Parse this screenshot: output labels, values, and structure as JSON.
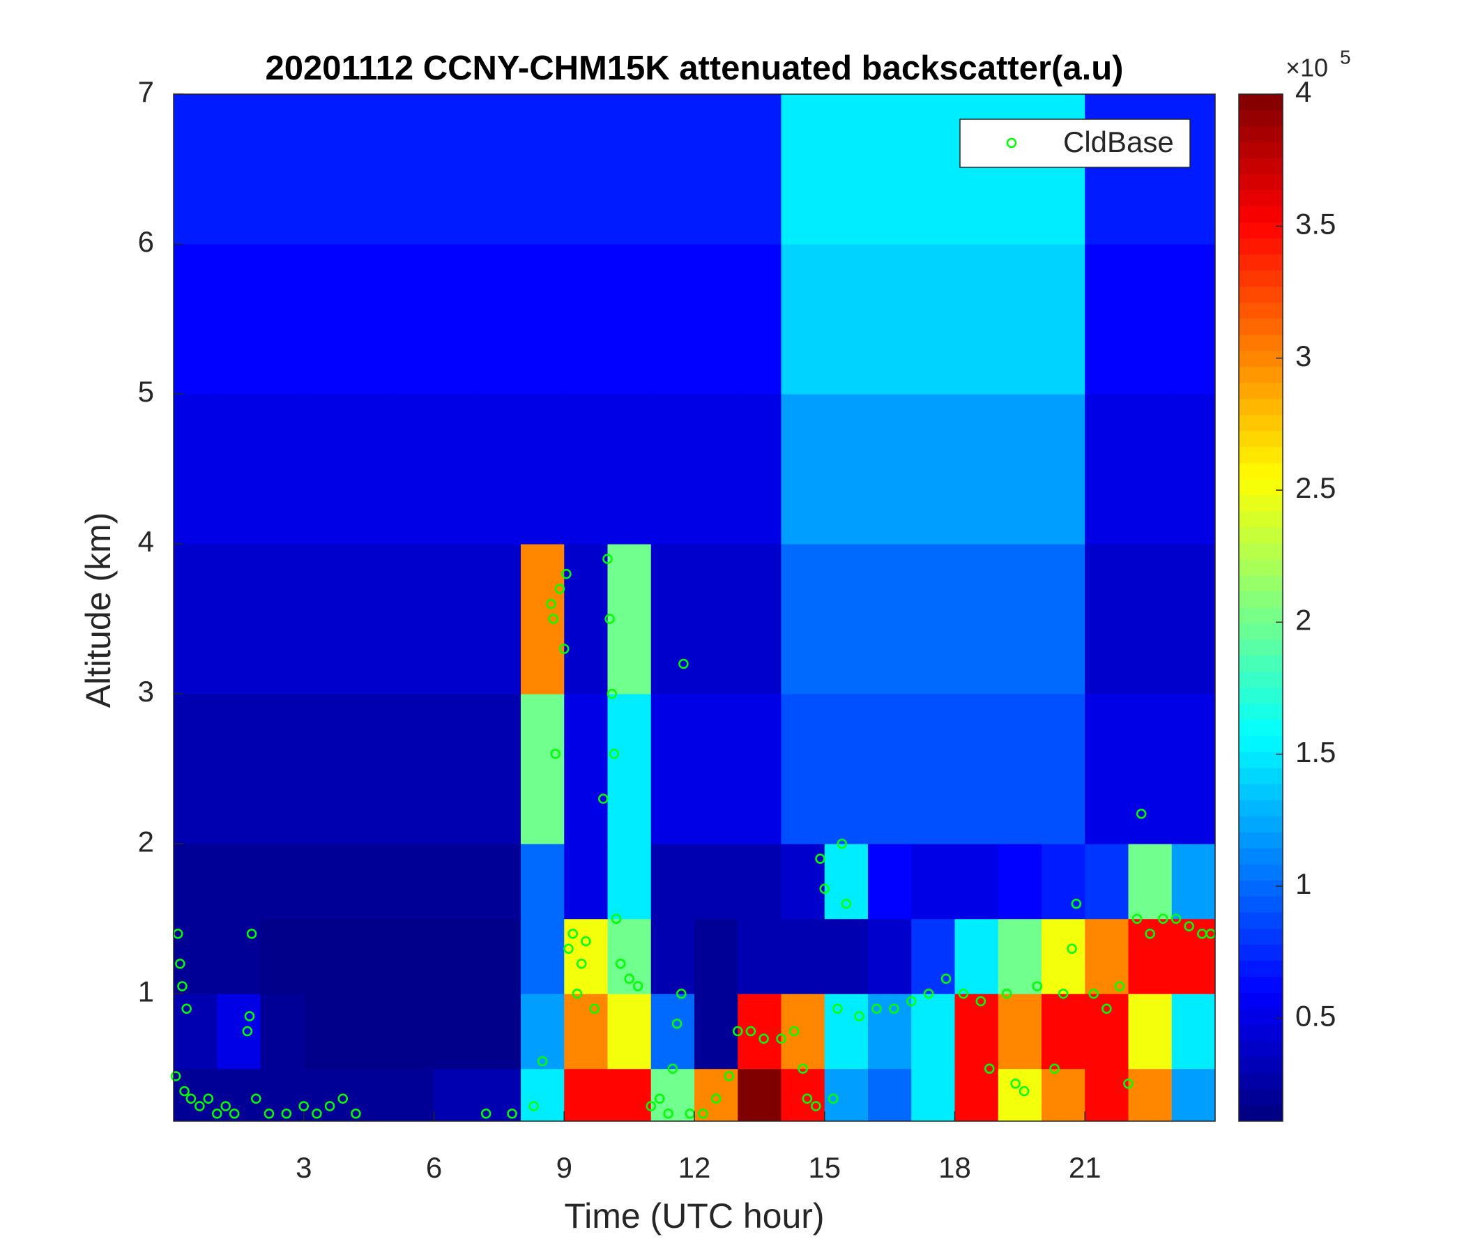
{
  "chart_data": {
    "type": "heatmap",
    "title": "20201112 CCNY-CHM15K attenuated backscatter(a.u)",
    "xlabel": "Time (UTC hour)",
    "ylabel": "Altitude (km)",
    "xlim": [
      0,
      24
    ],
    "ylim": [
      0.15,
      7
    ],
    "xticks": [
      3,
      6,
      9,
      12,
      15,
      18,
      21
    ],
    "yticks": [
      1,
      2,
      3,
      4,
      5,
      6,
      7
    ],
    "colormap": "jet",
    "clim": [
      0.11,
      4
    ],
    "cticks": [
      0.5,
      1,
      1.5,
      2,
      2.5,
      3,
      3.5,
      4
    ],
    "colorbar_multiplier": "×10",
    "colorbar_exponent": "5",
    "legend_position": "upper right",
    "x_edges": [
      0,
      1,
      2,
      3,
      4,
      5,
      6,
      7,
      8,
      9,
      10,
      11,
      12,
      13,
      14,
      15,
      16,
      17,
      18,
      19,
      20,
      21,
      22,
      23,
      24
    ],
    "y_edges": [
      0.15,
      0.5,
      1,
      1.5,
      2,
      3,
      4,
      5,
      6,
      7
    ],
    "z": [
      [
        0.2,
        0.2,
        0.2,
        0.2,
        0.2,
        0.2,
        0.3,
        0.3,
        1.5,
        3.5,
        3.5,
        2,
        3,
        4,
        3.5,
        1.2,
        1,
        1.5,
        3.5,
        2.5,
        3,
        3.5,
        3,
        1.2
      ],
      [
        0.3,
        0.5,
        0.2,
        0.15,
        0.15,
        0.15,
        0.15,
        0.15,
        1.2,
        3,
        2.5,
        1,
        0.2,
        3.5,
        3,
        1.5,
        1.2,
        1.5,
        3.5,
        3,
        3.5,
        3.5,
        2.5,
        1.5
      ],
      [
        0.2,
        0.2,
        0.15,
        0.15,
        0.15,
        0.15,
        0.15,
        0.15,
        1,
        2.5,
        2,
        0.3,
        0.2,
        0.3,
        0.3,
        0.3,
        0.4,
        0.8,
        1.5,
        2,
        2.5,
        3,
        3.5,
        3.5
      ],
      [
        0.2,
        0.2,
        0.2,
        0.2,
        0.2,
        0.2,
        0.2,
        0.2,
        1,
        0.5,
        1.5,
        0.3,
        0.3,
        0.3,
        0.4,
        1.5,
        0.6,
        0.5,
        0.5,
        0.6,
        0.7,
        0.8,
        2,
        1.2
      ],
      [
        0.3,
        0.3,
        0.3,
        0.3,
        0.3,
        0.3,
        0.3,
        0.3,
        2,
        0.5,
        1.5,
        0.5,
        0.5,
        0.5,
        0.9,
        0.9,
        0.9,
        0.9,
        0.9,
        0.9,
        0.9,
        0.5,
        0.5,
        0.5
      ],
      [
        0.4,
        0.4,
        0.4,
        0.4,
        0.4,
        0.4,
        0.4,
        0.4,
        3,
        0.4,
        2,
        0.4,
        0.4,
        0.4,
        1,
        1,
        1,
        1,
        1,
        1,
        1,
        0.4,
        0.4,
        0.4
      ],
      [
        0.5,
        0.5,
        0.5,
        0.5,
        0.5,
        0.5,
        0.5,
        0.5,
        0.5,
        0.5,
        0.5,
        0.5,
        0.5,
        0.5,
        1.2,
        1.2,
        1.2,
        1.2,
        1.2,
        1.2,
        1.2,
        0.5,
        0.5,
        0.5
      ],
      [
        0.6,
        0.6,
        0.6,
        0.6,
        0.6,
        0.6,
        0.6,
        0.6,
        0.6,
        0.6,
        0.6,
        0.6,
        0.6,
        0.6,
        1.4,
        1.4,
        1.4,
        1.4,
        1.4,
        1.4,
        1.4,
        0.6,
        0.6,
        0.6
      ],
      [
        0.7,
        0.7,
        0.7,
        0.7,
        0.7,
        0.7,
        0.7,
        0.7,
        0.7,
        0.7,
        0.7,
        0.7,
        0.7,
        0.7,
        1.5,
        1.5,
        1.5,
        1.5,
        1.5,
        1.5,
        1.5,
        0.7,
        0.7,
        0.7
      ]
    ],
    "series": [
      {
        "name": "CldBase",
        "type": "scatter",
        "color": "#00ff00",
        "x": [
          0.05,
          0.1,
          0.15,
          0.2,
          0.25,
          0.3,
          0.4,
          0.6,
          0.8,
          1.0,
          1.2,
          1.4,
          1.7,
          1.75,
          1.8,
          1.9,
          2.2,
          2.6,
          3.0,
          3.3,
          3.6,
          3.9,
          4.2,
          7.2,
          7.8,
          8.3,
          8.5,
          8.7,
          8.75,
          8.8,
          8.9,
          9.0,
          9.05,
          9.1,
          9.2,
          9.3,
          9.4,
          9.5,
          9.7,
          9.9,
          10.0,
          10.05,
          10.1,
          10.15,
          10.2,
          10.3,
          10.5,
          10.7,
          11.0,
          11.2,
          11.4,
          11.5,
          11.6,
          11.7,
          11.75,
          11.9,
          12.2,
          12.5,
          12.8,
          13.0,
          13.3,
          13.6,
          14.0,
          14.3,
          14.5,
          14.6,
          14.8,
          14.9,
          15.0,
          15.2,
          15.3,
          15.4,
          15.5,
          15.8,
          16.2,
          16.6,
          17.0,
          17.4,
          17.8,
          18.2,
          18.6,
          18.8,
          19.2,
          19.4,
          19.6,
          19.9,
          20.3,
          20.5,
          20.7,
          20.8,
          21.2,
          21.5,
          21.8,
          22.0,
          22.2,
          22.3,
          22.5,
          22.8,
          23.1,
          23.4,
          23.7,
          23.9
        ],
        "y": [
          0.45,
          1.4,
          1.2,
          1.05,
          0.35,
          0.9,
          0.3,
          0.25,
          0.3,
          0.2,
          0.25,
          0.2,
          0.75,
          0.85,
          1.4,
          0.3,
          0.2,
          0.2,
          0.25,
          0.2,
          0.25,
          0.3,
          0.2,
          0.2,
          0.2,
          0.25,
          0.55,
          3.6,
          3.5,
          2.6,
          3.7,
          3.3,
          3.8,
          1.3,
          1.4,
          1.0,
          1.2,
          1.35,
          0.9,
          2.3,
          3.9,
          3.5,
          3.0,
          2.6,
          1.5,
          1.2,
          1.1,
          1.05,
          0.25,
          0.3,
          0.2,
          0.5,
          0.8,
          1.0,
          3.2,
          0.2,
          0.2,
          0.3,
          0.45,
          0.75,
          0.75,
          0.7,
          0.7,
          0.75,
          0.5,
          0.3,
          0.25,
          1.9,
          1.7,
          0.3,
          0.9,
          2.0,
          1.6,
          0.85,
          0.9,
          0.9,
          0.95,
          1.0,
          1.1,
          1.0,
          0.95,
          0.5,
          1.0,
          0.4,
          0.35,
          1.05,
          0.5,
          1.0,
          1.3,
          1.6,
          1.0,
          0.9,
          1.05,
          0.4,
          1.5,
          2.2,
          1.4,
          1.5,
          1.5,
          1.45,
          1.4,
          1.4
        ]
      }
    ]
  }
}
